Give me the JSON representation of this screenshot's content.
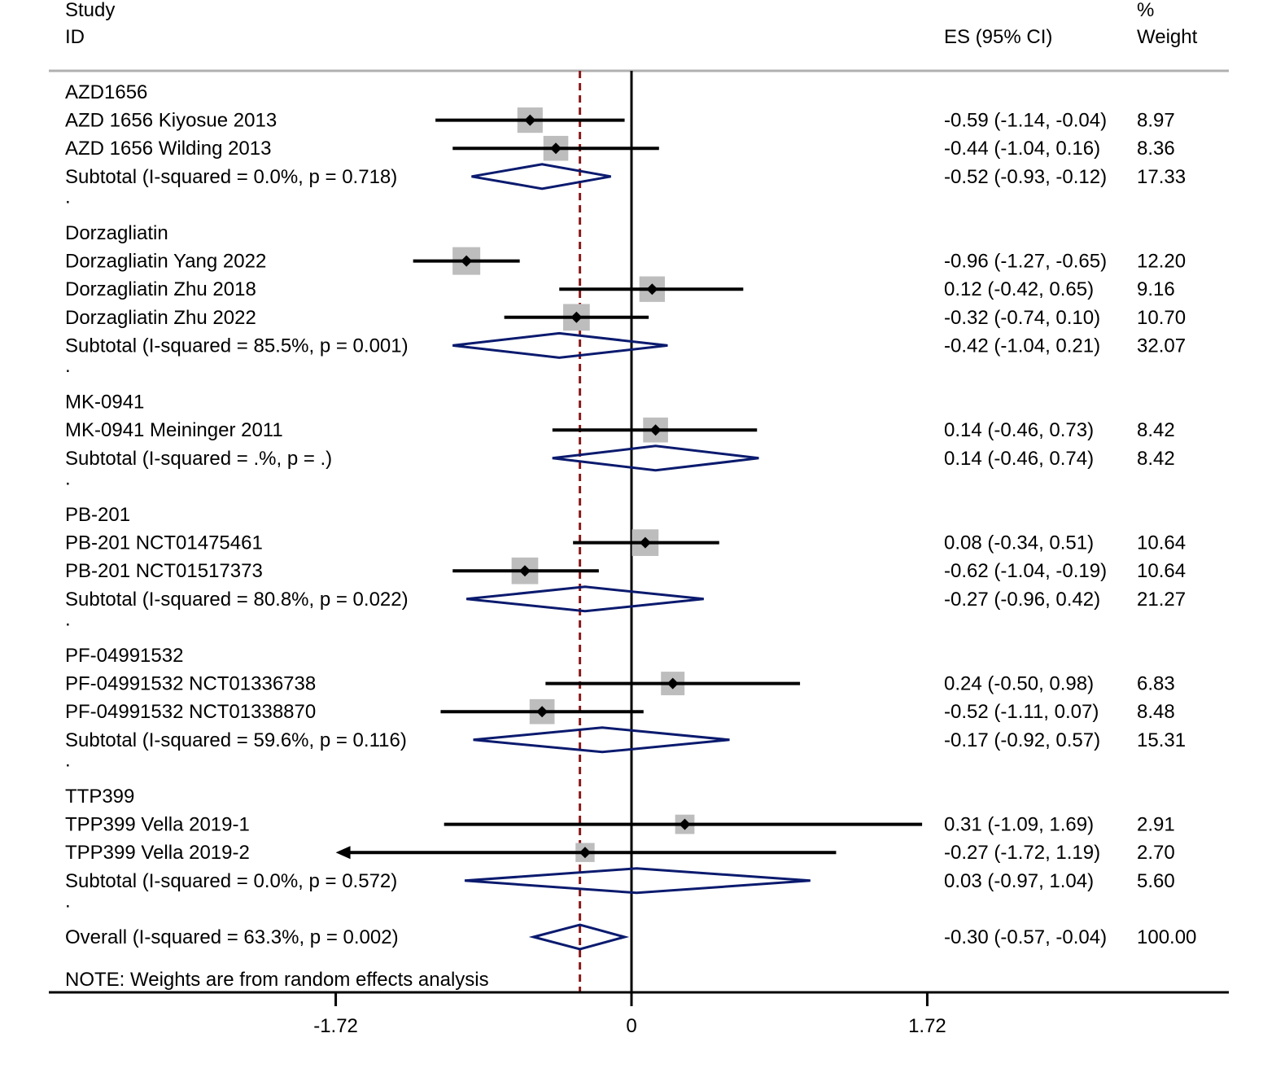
{
  "chart_data": {
    "type": "forest",
    "header": {
      "col1_line1": "Study",
      "col1_line2": "ID",
      "col2": "ES (95% CI)",
      "col3_line1": "%",
      "col3_line2": "Weight"
    },
    "xlim": [
      -1.72,
      1.72
    ],
    "x_ticks": [
      {
        "value": -1.72,
        "label": "-1.72"
      },
      {
        "value": 0,
        "label": "0"
      },
      {
        "value": 1.72,
        "label": "1.72"
      }
    ],
    "overall_reference": -0.3,
    "groups": [
      {
        "name": "AZD1656",
        "studies": [
          {
            "label": "AZD 1656 Kiyosue 2013",
            "es": -0.59,
            "lo": -1.14,
            "hi": -0.04,
            "weight": 8.97,
            "es_text": "-0.59 (-1.14, -0.04)",
            "weight_text": "8.97"
          },
          {
            "label": "AZD 1656 Wilding 2013",
            "es": -0.44,
            "lo": -1.04,
            "hi": 0.16,
            "weight": 8.36,
            "es_text": "-0.44 (-1.04, 0.16)",
            "weight_text": "8.36"
          }
        ],
        "subtotal": {
          "label": "Subtotal  (I-squared = 0.0%, p = 0.718)",
          "es": -0.52,
          "lo": -0.93,
          "hi": -0.12,
          "es_text": "-0.52 (-0.93, -0.12)",
          "weight_text": "17.33"
        }
      },
      {
        "name": "Dorzagliatin",
        "studies": [
          {
            "label": "Dorzagliatin Yang 2022",
            "es": -0.96,
            "lo": -1.27,
            "hi": -0.65,
            "weight": 12.2,
            "es_text": "-0.96 (-1.27, -0.65)",
            "weight_text": "12.20"
          },
          {
            "label": "Dorzagliatin Zhu 2018",
            "es": 0.12,
            "lo": -0.42,
            "hi": 0.65,
            "weight": 9.16,
            "es_text": "0.12 (-0.42, 0.65)",
            "weight_text": "9.16"
          },
          {
            "label": "Dorzagliatin Zhu 2022",
            "es": -0.32,
            "lo": -0.74,
            "hi": 0.1,
            "weight": 10.7,
            "es_text": "-0.32 (-0.74, 0.10)",
            "weight_text": "10.70"
          }
        ],
        "subtotal": {
          "label": "Subtotal  (I-squared = 85.5%, p = 0.001)",
          "es": -0.42,
          "lo": -1.04,
          "hi": 0.21,
          "es_text": "-0.42 (-1.04, 0.21)",
          "weight_text": "32.07"
        }
      },
      {
        "name": "MK-0941",
        "studies": [
          {
            "label": "MK-0941 Meininger 2011",
            "es": 0.14,
            "lo": -0.46,
            "hi": 0.73,
            "weight": 8.42,
            "es_text": "0.14 (-0.46, 0.73)",
            "weight_text": "8.42"
          }
        ],
        "subtotal": {
          "label": "Subtotal  (I-squared = .%, p = .)",
          "es": 0.14,
          "lo": -0.46,
          "hi": 0.74,
          "es_text": "0.14 (-0.46, 0.74)",
          "weight_text": "8.42"
        }
      },
      {
        "name": "PB-201",
        "studies": [
          {
            "label": "PB-201 NCT01475461",
            "es": 0.08,
            "lo": -0.34,
            "hi": 0.51,
            "weight": 10.64,
            "es_text": "0.08 (-0.34, 0.51)",
            "weight_text": "10.64"
          },
          {
            "label": "PB-201 NCT01517373",
            "es": -0.62,
            "lo": -1.04,
            "hi": -0.19,
            "weight": 10.64,
            "es_text": "-0.62 (-1.04, -0.19)",
            "weight_text": "10.64"
          }
        ],
        "subtotal": {
          "label": "Subtotal  (I-squared = 80.8%, p = 0.022)",
          "es": -0.27,
          "lo": -0.96,
          "hi": 0.42,
          "es_text": "-0.27 (-0.96, 0.42)",
          "weight_text": "21.27"
        }
      },
      {
        "name": "PF-04991532",
        "studies": [
          {
            "label": "PF-04991532 NCT01336738",
            "es": 0.24,
            "lo": -0.5,
            "hi": 0.98,
            "weight": 6.83,
            "es_text": "0.24 (-0.50, 0.98)",
            "weight_text": "6.83"
          },
          {
            "label": "PF-04991532 NCT01338870",
            "es": -0.52,
            "lo": -1.11,
            "hi": 0.07,
            "weight": 8.48,
            "es_text": "-0.52 (-1.11, 0.07)",
            "weight_text": "8.48"
          }
        ],
        "subtotal": {
          "label": "Subtotal  (I-squared = 59.6%, p = 0.116)",
          "es": -0.17,
          "lo": -0.92,
          "hi": 0.57,
          "es_text": "-0.17 (-0.92, 0.57)",
          "weight_text": "15.31"
        }
      },
      {
        "name": "TTP399",
        "studies": [
          {
            "label": "TPP399 Vella 2019-1",
            "es": 0.31,
            "lo": -1.09,
            "hi": 1.69,
            "weight": 2.91,
            "es_text": "0.31 (-1.09, 1.69)",
            "weight_text": "2.91"
          },
          {
            "label": "TPP399 Vella 2019-2",
            "es": -0.27,
            "lo": -1.72,
            "hi": 1.19,
            "weight": 2.7,
            "es_text": "-0.27 (-1.72, 1.19)",
            "weight_text": "2.70"
          }
        ],
        "subtotal": {
          "label": "Subtotal  (I-squared = 0.0%, p = 0.572)",
          "es": 0.03,
          "lo": -0.97,
          "hi": 1.04,
          "es_text": "0.03 (-0.97, 1.04)",
          "weight_text": "5.60"
        }
      }
    ],
    "overall": {
      "label": "Overall  (I-squared = 63.3%, p = 0.002)",
      "es": -0.3,
      "lo": -0.57,
      "hi": -0.04,
      "es_text": "-0.30 (-0.57, -0.04)",
      "weight_text": "100.00"
    },
    "spacer_label": ".",
    "note": "NOTE: Weights are from random effects analysis",
    "colors": {
      "text": "#000000",
      "ci_line": "#000000",
      "weight_box": "#bdbdbd",
      "diamond": "#0a1a6e",
      "reference_dash": "#8b1a1a",
      "header_rule": "#b0b0b0"
    }
  }
}
